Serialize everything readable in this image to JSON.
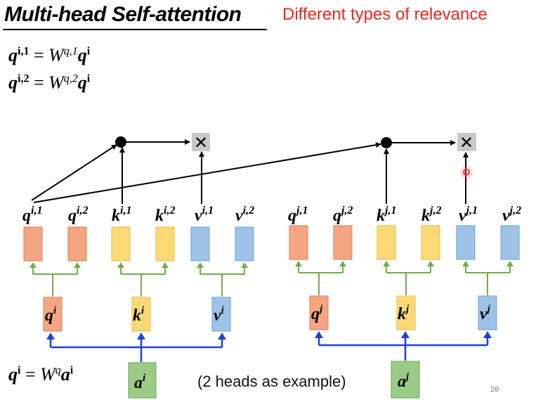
{
  "header": {
    "title": "Multi-head Self-attention",
    "subtitle": "Different types of relevance"
  },
  "equations": {
    "eq1": {
      "lhs": "q",
      "lhs_sup": "i,1",
      "eq": " = ",
      "w": "W",
      "w_sup": "q,1",
      "rhs": "q",
      "rhs_sup": "i"
    },
    "eq2": {
      "lhs": "q",
      "lhs_sup": "i,2",
      "eq": " = ",
      "w": "W",
      "w_sup": "q,2",
      "rhs": "q",
      "rhs_sup": "i"
    },
    "eq3": {
      "lhs": "q",
      "lhs_sup": "i",
      "eq": " = ",
      "w": "W",
      "w_sup": "q",
      "rhs": "a",
      "rhs_sup": "i"
    }
  },
  "diagram": {
    "heads_i": {
      "labels": [
        {
          "base": "q",
          "sup": "i,1"
        },
        {
          "base": "q",
          "sup": "i,2"
        },
        {
          "base": "k",
          "sup": "i,1"
        },
        {
          "base": "k",
          "sup": "i,2"
        },
        {
          "base": "v",
          "sup": "i,1"
        },
        {
          "base": "v",
          "sup": "i,2"
        }
      ],
      "mids": [
        {
          "base": "q",
          "sup": "i"
        },
        {
          "base": "k",
          "sup": "i"
        },
        {
          "base": "v",
          "sup": "i"
        }
      ],
      "input": {
        "base": "a",
        "sup": "i"
      }
    },
    "heads_j": {
      "labels": [
        {
          "base": "q",
          "sup": "j,1"
        },
        {
          "base": "q",
          "sup": "j,2"
        },
        {
          "base": "k",
          "sup": "j,1"
        },
        {
          "base": "k",
          "sup": "j,2"
        },
        {
          "base": "v",
          "sup": "j,1"
        },
        {
          "base": "v",
          "sup": "j,2"
        }
      ],
      "mids": [
        {
          "base": "q",
          "sup": "j"
        },
        {
          "base": "k",
          "sup": "j"
        },
        {
          "base": "v",
          "sup": "j"
        }
      ],
      "input": {
        "base": "a",
        "sup": "j"
      }
    },
    "multiply_symbol": "✕",
    "colors": {
      "q": "#f4a582",
      "k": "#fdd976",
      "v": "#9ec3e8",
      "a": "#9bcb86",
      "green_line": "#70ad47",
      "blue_line": "#1f3fd6"
    }
  },
  "caption": "(2 heads as example)",
  "page_number": "26"
}
